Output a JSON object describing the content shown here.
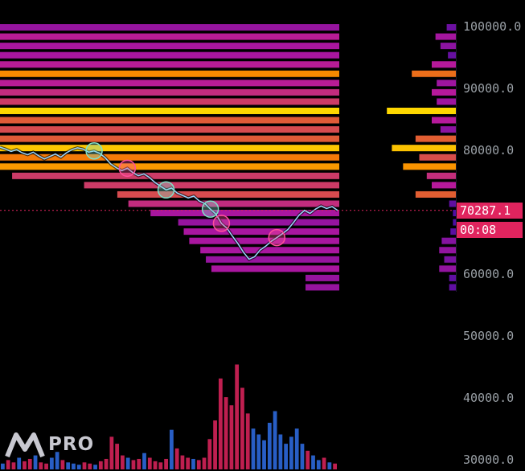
{
  "brand": {
    "name": "PRO",
    "logo_icon": "m-logo-icon"
  },
  "current_price": {
    "value": "70287.1",
    "countdown": "00:08",
    "color": "#e0245e"
  },
  "colors": {
    "background": "#000000",
    "heat_low": "#3a0ca3",
    "heat_mid": "#b5179e",
    "heat_high": "#f77f00",
    "heat_max": "#ffe600",
    "price_line": "#9ad7ff",
    "vol_buy": "#2f6ee8",
    "vol_sell": "#e0245e"
  },
  "chart_data": {
    "type": "heatmap",
    "y_axis": {
      "side": "right",
      "ticks": [
        "100000.0",
        "90000.0",
        "80000.0",
        "70000.0",
        "60000.0",
        "50000.0",
        "40000.0",
        "30000.0"
      ],
      "tick_values": [
        100000,
        90000,
        80000,
        70000,
        60000,
        50000,
        40000,
        30000
      ]
    },
    "ylim": [
      30000,
      100000
    ],
    "liquidation_levels": [
      {
        "price": 99800,
        "intensity": 0.25
      },
      {
        "price": 98300,
        "intensity": 0.35
      },
      {
        "price": 96800,
        "intensity": 0.3
      },
      {
        "price": 95300,
        "intensity": 0.3
      },
      {
        "price": 93800,
        "intensity": 0.35
      },
      {
        "price": 92300,
        "intensity": 0.7
      },
      {
        "price": 90800,
        "intensity": 0.35
      },
      {
        "price": 89300,
        "intensity": 0.4
      },
      {
        "price": 87800,
        "intensity": 0.45
      },
      {
        "price": 86300,
        "intensity": 0.95
      },
      {
        "price": 84800,
        "intensity": 0.55
      },
      {
        "price": 83300,
        "intensity": 0.5
      },
      {
        "price": 81800,
        "intensity": 0.55
      },
      {
        "price": 80300,
        "intensity": 0.9
      },
      {
        "price": 78800,
        "intensity": 0.65
      },
      {
        "price": 77300,
        "intensity": 0.75
      },
      {
        "price": 75800,
        "intensity": 0.45
      },
      {
        "price": 74300,
        "intensity": 0.45
      },
      {
        "price": 72800,
        "intensity": 0.5
      },
      {
        "price": 71300,
        "intensity": 0.4
      },
      {
        "price": 69800,
        "intensity": 0.3
      },
      {
        "price": 68300,
        "intensity": 0.25
      },
      {
        "price": 66800,
        "intensity": 0.3
      },
      {
        "price": 65300,
        "intensity": 0.3
      },
      {
        "price": 63800,
        "intensity": 0.3
      },
      {
        "price": 62300,
        "intensity": 0.25
      },
      {
        "price": 60800,
        "intensity": 0.3
      },
      {
        "price": 59300,
        "intensity": 0.25
      },
      {
        "price": 57800,
        "intensity": 0.25
      }
    ],
    "profile": [
      {
        "price": 99800,
        "value": 0.08
      },
      {
        "price": 98300,
        "value": 0.17
      },
      {
        "price": 96800,
        "value": 0.13
      },
      {
        "price": 95300,
        "value": 0.07
      },
      {
        "price": 93800,
        "value": 0.2
      },
      {
        "price": 92300,
        "value": 0.36
      },
      {
        "price": 90800,
        "value": 0.16
      },
      {
        "price": 89300,
        "value": 0.2
      },
      {
        "price": 87800,
        "value": 0.16
      },
      {
        "price": 86300,
        "value": 0.56
      },
      {
        "price": 84800,
        "value": 0.2
      },
      {
        "price": 83300,
        "value": 0.13
      },
      {
        "price": 81800,
        "value": 0.33
      },
      {
        "price": 80300,
        "value": 0.52
      },
      {
        "price": 78800,
        "value": 0.3
      },
      {
        "price": 77300,
        "value": 0.43
      },
      {
        "price": 75800,
        "value": 0.24
      },
      {
        "price": 74300,
        "value": 0.2
      },
      {
        "price": 72800,
        "value": 0.33
      },
      {
        "price": 71300,
        "value": 0.06
      },
      {
        "price": 69800,
        "value": 0.03
      },
      {
        "price": 68300,
        "value": 0.03
      },
      {
        "price": 66800,
        "value": 0.05
      },
      {
        "price": 65300,
        "value": 0.12
      },
      {
        "price": 63800,
        "value": 0.14
      },
      {
        "price": 62300,
        "value": 0.1
      },
      {
        "price": 60800,
        "value": 0.14
      },
      {
        "price": 59300,
        "value": 0.06
      },
      {
        "price": 57800,
        "value": 0.06
      }
    ],
    "price_series": [
      80500,
      80200,
      79800,
      80100,
      79600,
      79300,
      79700,
      79100,
      78600,
      79000,
      79400,
      78900,
      79600,
      80100,
      80400,
      80200,
      79700,
      79900,
      79500,
      78800,
      77800,
      77200,
      76700,
      77100,
      76400,
      75900,
      76200,
      75600,
      74800,
      74200,
      73600,
      73900,
      73100,
      72700,
      72300,
      72600,
      71800,
      71400,
      70500,
      69700,
      68200,
      67400,
      66100,
      64900,
      63500,
      62400,
      62800,
      63900,
      64500,
      65300,
      65900,
      66500,
      67200,
      68300,
      69500,
      70300,
      69800,
      70500,
      71000,
      70600,
      70900,
      70287
    ],
    "event_markers": [
      {
        "index": 17,
        "type": "long"
      },
      {
        "index": 23,
        "type": "short"
      },
      {
        "index": 30,
        "type": "long"
      },
      {
        "index": 38,
        "type": "long"
      },
      {
        "index": 40,
        "type": "short"
      },
      {
        "index": 50,
        "type": "short"
      }
    ],
    "volume": [
      0.05,
      0.08,
      0.06,
      0.1,
      0.07,
      0.09,
      0.12,
      0.06,
      0.05,
      0.1,
      0.15,
      0.08,
      0.06,
      0.05,
      0.04,
      0.06,
      0.05,
      0.04,
      0.07,
      0.09,
      0.28,
      0.22,
      0.12,
      0.1,
      0.08,
      0.09,
      0.14,
      0.1,
      0.07,
      0.06,
      0.09,
      0.34,
      0.18,
      0.12,
      0.1,
      0.09,
      0.08,
      0.1,
      0.26,
      0.42,
      0.78,
      0.62,
      0.55,
      0.9,
      0.7,
      0.48,
      0.35,
      0.3,
      0.25,
      0.4,
      0.5,
      0.3,
      0.22,
      0.28,
      0.35,
      0.22,
      0.16,
      0.12,
      0.08,
      0.1,
      0.06,
      0.05
    ]
  }
}
